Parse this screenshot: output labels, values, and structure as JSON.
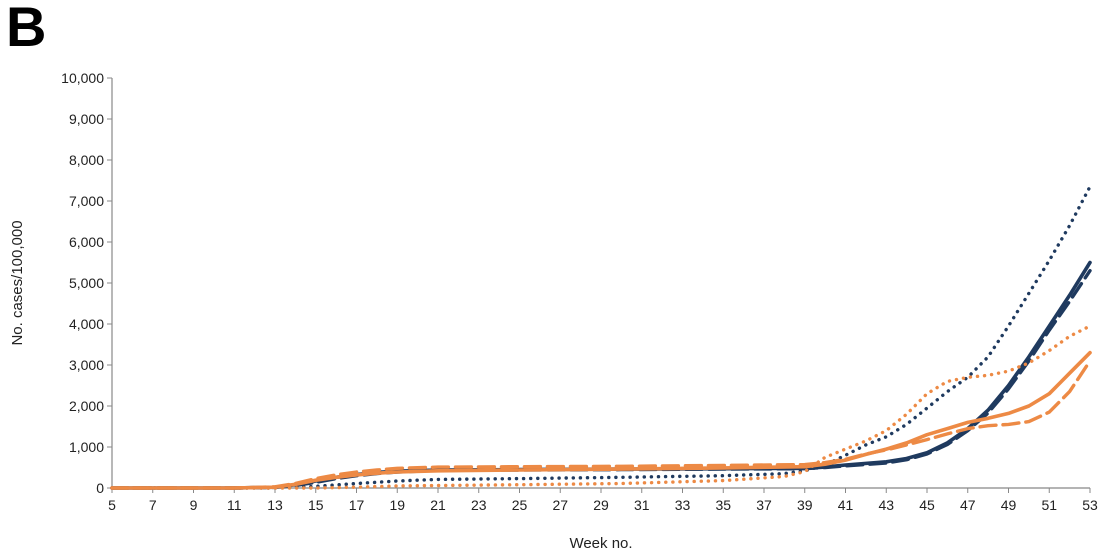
{
  "panel_label": "B",
  "colors": {
    "navy": "#1f3a5f",
    "orange": "#ed8a45",
    "axis": "#888888"
  },
  "chart_data": {
    "type": "line",
    "title": "",
    "xlabel": "Week no.",
    "ylabel": "No. cases/100,000",
    "xlim": [
      5,
      53
    ],
    "ylim": [
      0,
      10000
    ],
    "x_ticks": [
      5,
      7,
      9,
      11,
      13,
      15,
      17,
      19,
      21,
      23,
      25,
      27,
      29,
      31,
      33,
      35,
      37,
      39,
      41,
      43,
      45,
      47,
      49,
      51,
      53
    ],
    "x_tick_labels": [
      "5",
      "7",
      "9",
      "11",
      "13",
      "15",
      "17",
      "19",
      "21",
      "23",
      "25",
      "27",
      "29",
      "31",
      "33",
      "35",
      "37",
      "39",
      "41",
      "43",
      "45",
      "47",
      "49",
      "51",
      "53"
    ],
    "y_ticks": [
      0,
      1000,
      2000,
      3000,
      4000,
      5000,
      6000,
      7000,
      8000,
      9000,
      10000
    ],
    "y_tick_labels": [
      "0",
      "1,000",
      "2,000",
      "3,000",
      "4,000",
      "5,000",
      "6,000",
      "7,000",
      "8,000",
      "9,000",
      "10,000"
    ],
    "grid": false,
    "legend": "none",
    "series": [
      {
        "color": "navy",
        "style": "solid",
        "points": [
          [
            5,
            0
          ],
          [
            11,
            0
          ],
          [
            13,
            20
          ],
          [
            14,
            80
          ],
          [
            15,
            170
          ],
          [
            16,
            260
          ],
          [
            17,
            330
          ],
          [
            18,
            380
          ],
          [
            19,
            410
          ],
          [
            21,
            440
          ],
          [
            25,
            450
          ],
          [
            30,
            460
          ],
          [
            35,
            470
          ],
          [
            39,
            480
          ],
          [
            40,
            510
          ],
          [
            41,
            560
          ],
          [
            43,
            640
          ],
          [
            44,
            720
          ],
          [
            45,
            860
          ],
          [
            46,
            1100
          ],
          [
            47,
            1450
          ],
          [
            48,
            1900
          ],
          [
            49,
            2500
          ],
          [
            50,
            3200
          ],
          [
            51,
            3950
          ],
          [
            52,
            4700
          ],
          [
            53,
            5500
          ]
        ]
      },
      {
        "color": "navy",
        "style": "dashed",
        "points": [
          [
            5,
            0
          ],
          [
            11,
            0
          ],
          [
            13,
            15
          ],
          [
            14,
            60
          ],
          [
            15,
            140
          ],
          [
            16,
            230
          ],
          [
            17,
            300
          ],
          [
            18,
            350
          ],
          [
            19,
            390
          ],
          [
            21,
            430
          ],
          [
            25,
            440
          ],
          [
            30,
            450
          ],
          [
            35,
            460
          ],
          [
            39,
            470
          ],
          [
            40,
            500
          ],
          [
            41,
            540
          ],
          [
            43,
            610
          ],
          [
            44,
            690
          ],
          [
            45,
            830
          ],
          [
            46,
            1060
          ],
          [
            47,
            1400
          ],
          [
            48,
            1830
          ],
          [
            49,
            2420
          ],
          [
            50,
            3100
          ],
          [
            51,
            3850
          ],
          [
            52,
            4550
          ],
          [
            53,
            5300
          ]
        ]
      },
      {
        "color": "navy",
        "style": "dotted",
        "points": [
          [
            5,
            0
          ],
          [
            13,
            0
          ],
          [
            15,
            40
          ],
          [
            17,
            110
          ],
          [
            19,
            170
          ],
          [
            21,
            210
          ],
          [
            25,
            230
          ],
          [
            30,
            260
          ],
          [
            35,
            300
          ],
          [
            38,
            350
          ],
          [
            39,
            420
          ],
          [
            40,
            560
          ],
          [
            41,
            800
          ],
          [
            42,
            1050
          ],
          [
            43,
            1250
          ],
          [
            44,
            1550
          ],
          [
            45,
            1950
          ],
          [
            46,
            2350
          ],
          [
            47,
            2700
          ],
          [
            48,
            3200
          ],
          [
            49,
            3950
          ],
          [
            50,
            4750
          ],
          [
            51,
            5550
          ],
          [
            52,
            6400
          ],
          [
            53,
            7350
          ]
        ]
      },
      {
        "color": "orange",
        "style": "solid",
        "points": [
          [
            5,
            0
          ],
          [
            11,
            0
          ],
          [
            13,
            20
          ],
          [
            14,
            90
          ],
          [
            15,
            190
          ],
          [
            16,
            260
          ],
          [
            17,
            320
          ],
          [
            18,
            360
          ],
          [
            19,
            390
          ],
          [
            21,
            420
          ],
          [
            25,
            440
          ],
          [
            30,
            460
          ],
          [
            35,
            490
          ],
          [
            39,
            520
          ],
          [
            40,
            580
          ],
          [
            41,
            680
          ],
          [
            42,
            820
          ],
          [
            43,
            950
          ],
          [
            44,
            1100
          ],
          [
            45,
            1300
          ],
          [
            46,
            1450
          ],
          [
            47,
            1600
          ],
          [
            48,
            1700
          ],
          [
            49,
            1820
          ],
          [
            50,
            2000
          ],
          [
            51,
            2300
          ],
          [
            52,
            2800
          ],
          [
            53,
            3300
          ]
        ]
      },
      {
        "color": "orange",
        "style": "dashed",
        "points": [
          [
            5,
            0
          ],
          [
            11,
            0
          ],
          [
            13,
            30
          ],
          [
            14,
            110
          ],
          [
            15,
            230
          ],
          [
            16,
            320
          ],
          [
            17,
            390
          ],
          [
            18,
            440
          ],
          [
            19,
            480
          ],
          [
            21,
            510
          ],
          [
            25,
            520
          ],
          [
            30,
            530
          ],
          [
            35,
            550
          ],
          [
            39,
            570
          ],
          [
            40,
            620
          ],
          [
            41,
            700
          ],
          [
            42,
            830
          ],
          [
            43,
            930
          ],
          [
            44,
            1050
          ],
          [
            45,
            1180
          ],
          [
            46,
            1320
          ],
          [
            47,
            1450
          ],
          [
            48,
            1520
          ],
          [
            49,
            1550
          ],
          [
            50,
            1620
          ],
          [
            51,
            1850
          ],
          [
            52,
            2350
          ],
          [
            53,
            3100
          ]
        ]
      },
      {
        "color": "orange",
        "style": "dotted",
        "points": [
          [
            5,
            0
          ],
          [
            15,
            0
          ],
          [
            17,
            20
          ],
          [
            19,
            50
          ],
          [
            21,
            60
          ],
          [
            25,
            80
          ],
          [
            30,
            110
          ],
          [
            35,
            180
          ],
          [
            38,
            280
          ],
          [
            39,
            400
          ],
          [
            40,
            750
          ],
          [
            41,
            950
          ],
          [
            42,
            1150
          ],
          [
            43,
            1400
          ],
          [
            44,
            1800
          ],
          [
            45,
            2300
          ],
          [
            46,
            2600
          ],
          [
            47,
            2700
          ],
          [
            48,
            2750
          ],
          [
            49,
            2850
          ],
          [
            50,
            3050
          ],
          [
            51,
            3350
          ],
          [
            52,
            3700
          ],
          [
            53,
            3950
          ]
        ]
      }
    ]
  }
}
